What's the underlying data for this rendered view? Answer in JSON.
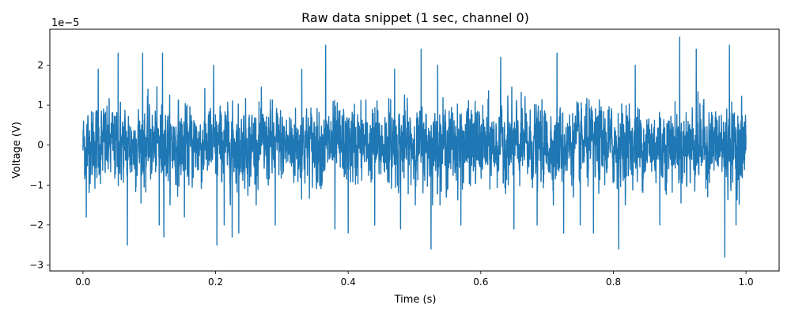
{
  "chart_data": {
    "type": "line",
    "title": "Raw data snippet (1 sec, channel 0)",
    "xlabel": "Time (s)",
    "ylabel": "Voltage (V)",
    "y_scale_label": "1e−5",
    "xlim": [
      -0.05,
      1.05
    ],
    "ylim": [
      -3.15,
      2.9
    ],
    "x_ticks": [
      0.0,
      0.2,
      0.4,
      0.6,
      0.8,
      1.0
    ],
    "x_tick_labels": [
      "0.0",
      "0.2",
      "0.4",
      "0.6",
      "0.8",
      "1.0"
    ],
    "y_ticks": [
      -3,
      -2,
      -1,
      0,
      1,
      2
    ],
    "y_tick_labels": [
      "−3",
      "−2",
      "−1",
      "0",
      "1",
      "2"
    ],
    "grid": false,
    "series": [
      {
        "color": "#1f77b4",
        "sample_rate_hz": 4000,
        "noise_band": [
          -1.1,
          1.1
        ],
        "peaks": [
          {
            "x": 0.005,
            "y": -1.8
          },
          {
            "x": 0.023,
            "y": 1.9
          },
          {
            "x": 0.053,
            "y": 2.3
          },
          {
            "x": 0.067,
            "y": -2.5
          },
          {
            "x": 0.09,
            "y": 2.3
          },
          {
            "x": 0.115,
            "y": -2.0
          },
          {
            "x": 0.12,
            "y": 2.3
          },
          {
            "x": 0.122,
            "y": -2.3
          },
          {
            "x": 0.153,
            "y": -1.8
          },
          {
            "x": 0.197,
            "y": 2.0
          },
          {
            "x": 0.202,
            "y": -2.5
          },
          {
            "x": 0.213,
            "y": -2.0
          },
          {
            "x": 0.225,
            "y": -2.3
          },
          {
            "x": 0.235,
            "y": -2.2
          },
          {
            "x": 0.29,
            "y": -2.0
          },
          {
            "x": 0.33,
            "y": 1.9
          },
          {
            "x": 0.366,
            "y": 2.5
          },
          {
            "x": 0.38,
            "y": -2.1
          },
          {
            "x": 0.4,
            "y": -2.2
          },
          {
            "x": 0.44,
            "y": -2.0
          },
          {
            "x": 0.47,
            "y": 1.9
          },
          {
            "x": 0.479,
            "y": -2.1
          },
          {
            "x": 0.51,
            "y": 2.4
          },
          {
            "x": 0.525,
            "y": -2.6
          },
          {
            "x": 0.535,
            "y": 2.0
          },
          {
            "x": 0.57,
            "y": -2.0
          },
          {
            "x": 0.63,
            "y": 2.2
          },
          {
            "x": 0.65,
            "y": -2.1
          },
          {
            "x": 0.685,
            "y": -2.0
          },
          {
            "x": 0.715,
            "y": 2.3
          },
          {
            "x": 0.725,
            "y": -2.2
          },
          {
            "x": 0.75,
            "y": -2.0
          },
          {
            "x": 0.77,
            "y": -2.2
          },
          {
            "x": 0.808,
            "y": -2.6
          },
          {
            "x": 0.833,
            "y": 2.0
          },
          {
            "x": 0.87,
            "y": -2.0
          },
          {
            "x": 0.9,
            "y": 2.7
          },
          {
            "x": 0.925,
            "y": 2.4
          },
          {
            "x": 0.968,
            "y": -2.8
          },
          {
            "x": 0.975,
            "y": 2.5
          },
          {
            "x": 0.985,
            "y": -2.0
          }
        ]
      }
    ]
  }
}
